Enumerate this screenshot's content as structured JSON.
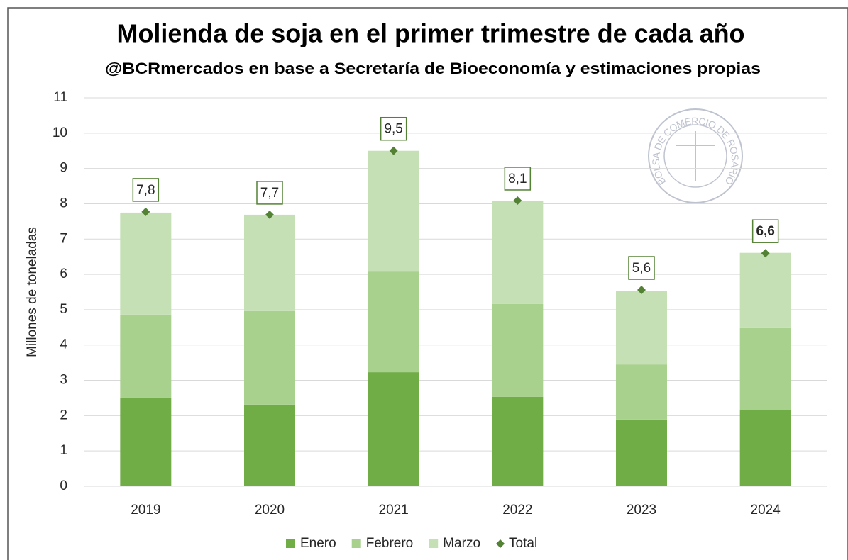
{
  "chart_data": {
    "type": "stacked_bar",
    "title": "Molienda de soja en el primer trimestre de cada año",
    "subtitle": "@BCRmercados en base a Secretaría de Bioeconomía y estimaciones propias",
    "y_label": "Millones de toneladas",
    "watermark": "BOLSA DE COMERCIO DE ROSARIO",
    "categories": [
      "2019",
      "2020",
      "2021",
      "2022",
      "2023",
      "2024"
    ],
    "series": [
      {
        "name": "Enero",
        "color": "#70ad47",
        "values": [
          2.51,
          2.31,
          3.23,
          2.53,
          1.89,
          2.15
        ]
      },
      {
        "name": "Febrero",
        "color": "#a9d18e",
        "values": [
          2.35,
          2.65,
          2.85,
          2.63,
          1.56,
          2.33
        ]
      },
      {
        "name": "Marzo",
        "color": "#c5e0b4",
        "values": [
          2.89,
          2.73,
          3.42,
          2.93,
          2.09,
          2.13
        ]
      },
      {
        "name": "Total",
        "color": "#548235",
        "mark": "diamond",
        "values": [
          7.77,
          7.69,
          9.5,
          8.09,
          5.56,
          6.6
        ],
        "value_labels": [
          "7,8",
          "7,7",
          "9,5",
          "8,1",
          "5,6",
          "6,6"
        ]
      }
    ],
    "highlight_category": "2024",
    "ylim": [
      0,
      11
    ],
    "yticks": [
      0,
      1,
      2,
      3,
      4,
      5,
      6,
      7,
      8,
      9,
      10,
      11
    ],
    "grid": true,
    "legend": "bottom"
  }
}
